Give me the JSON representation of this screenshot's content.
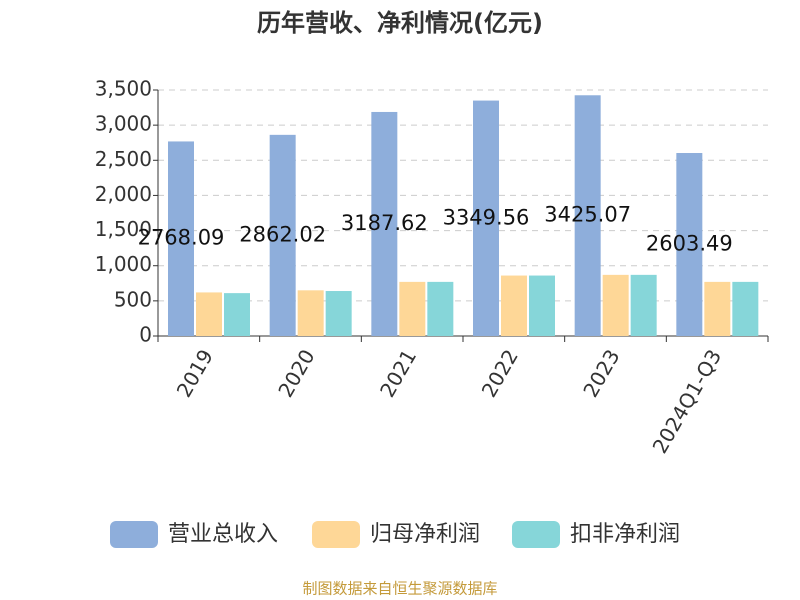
{
  "chart_data": {
    "type": "bar",
    "title": "历年营收、净利情况(亿元)",
    "categories": [
      "2019",
      "2020",
      "2021",
      "2022",
      "2023",
      "2024Q1-Q3"
    ],
    "series": [
      {
        "name": "营业总收入",
        "color": "#8eaedb",
        "values": [
          2768.09,
          2862.02,
          3187.62,
          3349.56,
          3425.07,
          2603.49
        ]
      },
      {
        "name": "归母净利润",
        "color": "#fed797",
        "values": [
          620,
          650,
          770,
          860,
          870,
          770
        ]
      },
      {
        "name": "扣非净利润",
        "color": "#86d6d9",
        "values": [
          610,
          640,
          770,
          860,
          870,
          770
        ]
      }
    ],
    "ylim": [
      0,
      3500
    ],
    "yticks": [
      0,
      500,
      {
        "value": 1000,
        "label": "1,000"
      },
      {
        "value": 1500,
        "label": "1,500"
      },
      {
        "value": 2000,
        "label": "2,000"
      },
      {
        "value": 2500,
        "label": "2,500"
      },
      {
        "value": 3000,
        "label": "3,000"
      },
      {
        "value": 3500,
        "label": "3,500"
      }
    ],
    "grid": true,
    "source": "制图数据来自恒生聚源数据库"
  }
}
